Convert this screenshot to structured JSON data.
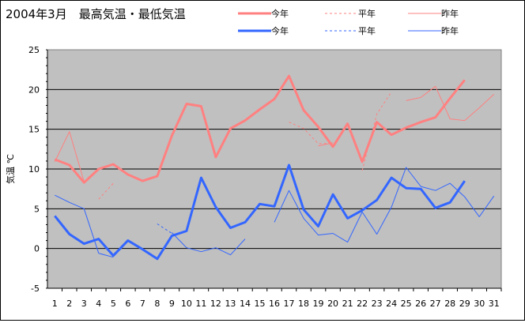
{
  "chart_data": {
    "type": "line",
    "title": "2004年3月　最高気温・最低気温",
    "ylabel": "気温 ℃",
    "xlabel": "",
    "ylim": [
      -5,
      25
    ],
    "yticks": [
      -5,
      0,
      5,
      10,
      15,
      20,
      25
    ],
    "grid": true,
    "legend_position": "top-right",
    "categories": [
      1,
      2,
      3,
      4,
      5,
      6,
      7,
      8,
      9,
      10,
      11,
      12,
      13,
      14,
      15,
      16,
      17,
      18,
      19,
      20,
      21,
      22,
      23,
      24,
      25,
      26,
      27,
      28,
      29,
      30,
      31
    ],
    "series": [
      {
        "name": "今年",
        "group": "max",
        "style": "thick",
        "color": "#ff8080",
        "values": [
          11.2,
          10.5,
          8.3,
          10.0,
          10.6,
          9.3,
          8.5,
          9.1,
          14.2,
          18.2,
          17.9,
          11.5,
          15.1,
          16.1,
          17.5,
          18.8,
          21.7,
          17.4,
          15.3,
          12.8,
          15.7,
          10.9,
          15.9,
          14.3,
          15.2,
          15.9,
          16.5,
          18.9,
          21.2,
          null,
          null
        ]
      },
      {
        "name": "平年",
        "group": "max",
        "style": "dashed",
        "color": "#ff8080",
        "values": [
          null,
          null,
          null,
          6.2,
          8.2,
          null,
          null,
          null,
          null,
          null,
          null,
          null,
          null,
          null,
          null,
          null,
          15.9,
          15.1,
          13.2,
          13.2,
          null,
          9.8,
          16.9,
          19.7,
          null,
          null,
          null,
          null,
          null,
          null,
          null
        ]
      },
      {
        "name": "昨年",
        "group": "max",
        "style": "thin",
        "color": "#ff8080",
        "values": [
          10.9,
          14.7,
          8.4,
          null,
          null,
          null,
          null,
          null,
          null,
          null,
          null,
          null,
          null,
          null,
          null,
          null,
          null,
          null,
          12.9,
          13.3,
          null,
          10.5,
          null,
          null,
          18.6,
          19.0,
          20.4,
          16.3,
          16.1,
          17.7,
          19.4
        ]
      },
      {
        "name": "今年",
        "group": "min",
        "style": "thick",
        "color": "#3366ff",
        "values": [
          4.1,
          1.8,
          0.6,
          1.2,
          -0.9,
          1.0,
          -0.1,
          -1.3,
          1.6,
          2.2,
          8.9,
          5.2,
          2.6,
          3.3,
          5.6,
          5.3,
          10.5,
          4.9,
          2.8,
          6.8,
          3.8,
          4.8,
          6.1,
          8.9,
          7.6,
          7.5,
          5.1,
          5.8,
          8.5,
          null,
          null
        ]
      },
      {
        "name": "平年",
        "group": "min",
        "style": "dashed",
        "color": "#3366ff",
        "values": [
          null,
          null,
          null,
          null,
          null,
          null,
          null,
          3.1,
          1.9,
          null,
          null,
          null,
          null,
          null,
          null,
          null,
          null,
          null,
          null,
          null,
          null,
          null,
          null,
          null,
          null,
          null,
          null,
          null,
          null,
          null,
          null
        ]
      },
      {
        "name": "昨年",
        "group": "min",
        "style": "thin",
        "color": "#3366ff",
        "values": [
          6.7,
          5.8,
          5.0,
          -0.6,
          -1.1,
          null,
          null,
          null,
          2.0,
          0.1,
          -0.4,
          0.1,
          -0.8,
          1.2,
          null,
          3.3,
          7.3,
          3.8,
          1.7,
          1.9,
          0.8,
          4.6,
          1.8,
          5.2,
          10.2,
          7.8,
          7.3,
          8.2,
          6.5,
          4.0,
          6.6
        ]
      }
    ]
  }
}
